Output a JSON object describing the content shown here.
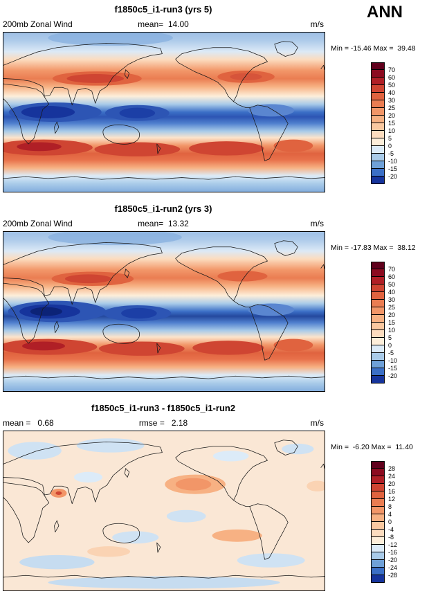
{
  "header": {
    "season_label": "ANN"
  },
  "colorbar": {
    "palette_top_to_bottom": [
      "#60001c",
      "#8c0b20",
      "#b01f26",
      "#cf4532",
      "#e0633f",
      "#ea7d52",
      "#f29668",
      "#f7b183",
      "#fac8a0",
      "#fcdcbf",
      "#fdeeda",
      "#dcebf8",
      "#a9cbe9",
      "#6fa1d8",
      "#3b6fc6",
      "#16349c"
    ]
  },
  "panels": [
    {
      "title": "f1850c5_i1-run3 (yrs 5)",
      "left_label": "200mb Zonal Wind",
      "center_label": "mean=  14.00",
      "right_label": "m/s",
      "minmax": "Min = -15.46 Max =  39.48",
      "colorbar_ticks": [
        "70",
        "60",
        "50",
        "40",
        "30",
        "25",
        "20",
        "15",
        "10",
        "5",
        "0",
        "-5",
        "-10",
        "-15",
        "-20"
      ]
    },
    {
      "title": "f1850c5_i1-run2 (yrs 3)",
      "left_label": "200mb Zonal Wind",
      "center_label": "mean=  13.32",
      "right_label": "m/s",
      "minmax": "Min = -17.83 Max =  38.12",
      "colorbar_ticks": [
        "70",
        "60",
        "50",
        "40",
        "30",
        "25",
        "20",
        "15",
        "10",
        "5",
        "0",
        "-5",
        "-10",
        "-15",
        "-20"
      ]
    },
    {
      "title": "f1850c5_i1-run3 - f1850c5_i1-run2",
      "left_label": "mean =   0.68",
      "center_label": "rmse =   2.18",
      "right_label": "m/s",
      "minmax": "Min =  -6.20 Max =  11.40",
      "colorbar_ticks": [
        "28",
        "24",
        "20",
        "16",
        "12",
        "8",
        "4",
        "0",
        "-4",
        "-8",
        "-12",
        "-16",
        "-20",
        "-24",
        "-28"
      ]
    }
  ],
  "chart_data": [
    {
      "type": "heatmap",
      "subtype": "filled-contour world map (cylindrical equidistant, lon 0-360, lat -90-90)",
      "title": "f1850c5_i1-run3 (yrs 5)",
      "variable": "200mb Zonal Wind",
      "units": "m/s",
      "season": "ANN",
      "mean": 14.0,
      "min": -15.46,
      "max": 39.48,
      "contour_levels": [
        -20,
        -15,
        -10,
        -5,
        0,
        5,
        10,
        15,
        20,
        25,
        30,
        40,
        50,
        60,
        70
      ],
      "legend_position": "right vertical colorbar",
      "approx_zonal_mean": {
        "lat": [
          -90,
          -75,
          -60,
          -45,
          -30,
          -15,
          0,
          15,
          30,
          45,
          60,
          75,
          90
        ],
        "u": [
          -7,
          -2,
          10,
          27,
          18,
          -4,
          -15,
          -7,
          20,
          24,
          9,
          -1,
          -4
        ]
      },
      "description": "Westerly jets (orange/red) near 30-45N and 30-50S; tropical easterlies (dark blue) centered on the equator over the Indian and Pacific oceans."
    },
    {
      "type": "heatmap",
      "subtype": "filled-contour world map (cylindrical equidistant, lon 0-360, lat -90-90)",
      "title": "f1850c5_i1-run2 (yrs 3)",
      "variable": "200mb Zonal Wind",
      "units": "m/s",
      "season": "ANN",
      "mean": 13.32,
      "min": -17.83,
      "max": 38.12,
      "contour_levels": [
        -20,
        -15,
        -10,
        -5,
        0,
        5,
        10,
        15,
        20,
        25,
        30,
        40,
        50,
        60,
        70
      ],
      "legend_position": "right vertical colorbar",
      "approx_zonal_mean": {
        "lat": [
          -90,
          -75,
          -60,
          -45,
          -30,
          -15,
          0,
          15,
          30,
          45,
          60,
          75,
          90
        ],
        "u": [
          -7,
          -2,
          11,
          28,
          18,
          -6,
          -17,
          -8,
          19,
          22,
          8,
          -1,
          -4
        ]
      },
      "description": "Same jet/easterly structure as run3 with slightly stronger tropical easterlies."
    },
    {
      "type": "heatmap",
      "subtype": "filled-contour world map difference plot",
      "title": "f1850c5_i1-run3 - f1850c5_i1-run2",
      "variable": "200mb Zonal Wind difference",
      "units": "m/s",
      "season": "ANN",
      "mean": 0.68,
      "rmse": 2.18,
      "min": -6.2,
      "max": 11.4,
      "contour_levels": [
        -28,
        -24,
        -20,
        -16,
        -12,
        -8,
        -4,
        0,
        4,
        8,
        12,
        16,
        20,
        24,
        28
      ],
      "legend_position": "right vertical colorbar",
      "description": "Mostly near-zero (pale peach) differences with scattered weak positive (orange) patches in the subtropics and weak negative (light blue) patches at high latitudes."
    }
  ]
}
